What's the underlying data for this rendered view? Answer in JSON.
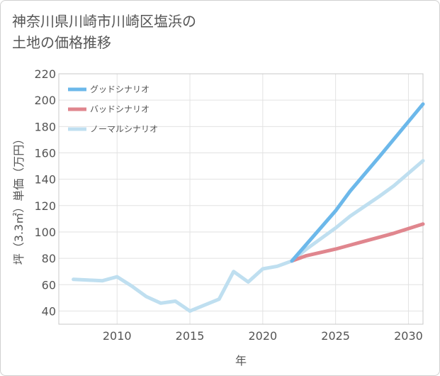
{
  "title_line1": "神奈川県川崎市川崎区塩浜の",
  "title_line2": "土地の価格推移",
  "chart_data": {
    "type": "line",
    "title": "神奈川県川崎市川崎区塩浜の土地の価格推移",
    "xlabel": "年",
    "ylabel": "坪（3.3㎡）単価（万円）",
    "xlim": [
      2006,
      2031
    ],
    "ylim": [
      30,
      220
    ],
    "x_ticks": [
      2010,
      2015,
      2020,
      2025,
      2030
    ],
    "y_ticks": [
      40,
      60,
      80,
      100,
      120,
      140,
      160,
      180,
      200,
      220
    ],
    "grid": true,
    "legend_position": "top-left",
    "series": [
      {
        "name": "グッドシナリオ",
        "color": "#6cb8ea",
        "x": [
          2022,
          2025,
          2026,
          2028,
          2031
        ],
        "values": [
          78,
          116,
          131,
          157,
          197
        ]
      },
      {
        "name": "バッドシナリオ",
        "color": "#e0868e",
        "x": [
          2022,
          2023,
          2025,
          2026,
          2028,
          2029,
          2031
        ],
        "values": [
          78,
          82,
          87,
          90,
          96,
          99,
          106
        ]
      },
      {
        "name": "ノーマルシナリオ",
        "color": "#bfdff0",
        "x": [
          2007,
          2008,
          2009,
          2010,
          2011,
          2012,
          2013,
          2014,
          2015,
          2016,
          2017,
          2018,
          2019,
          2020,
          2021,
          2022,
          2023,
          2025,
          2026,
          2028,
          2029,
          2031
        ],
        "values": [
          64,
          63.5,
          63,
          66,
          59,
          51,
          46,
          47.5,
          40,
          44.5,
          49,
          70,
          62,
          72,
          74,
          78,
          87,
          103,
          112,
          127,
          135,
          154
        ]
      }
    ]
  }
}
